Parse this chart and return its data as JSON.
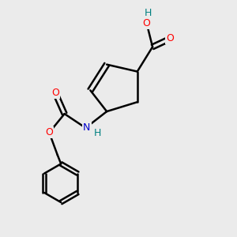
{
  "bg_color": "#ebebeb",
  "bond_color": "#000000",
  "bond_width": 1.8,
  "atom_colors": {
    "O": "#ff0000",
    "N": "#0000cc",
    "H": "#008080",
    "C": "#000000"
  },
  "font_size": 9,
  "fig_size": [
    3.0,
    3.0
  ],
  "dpi": 100
}
